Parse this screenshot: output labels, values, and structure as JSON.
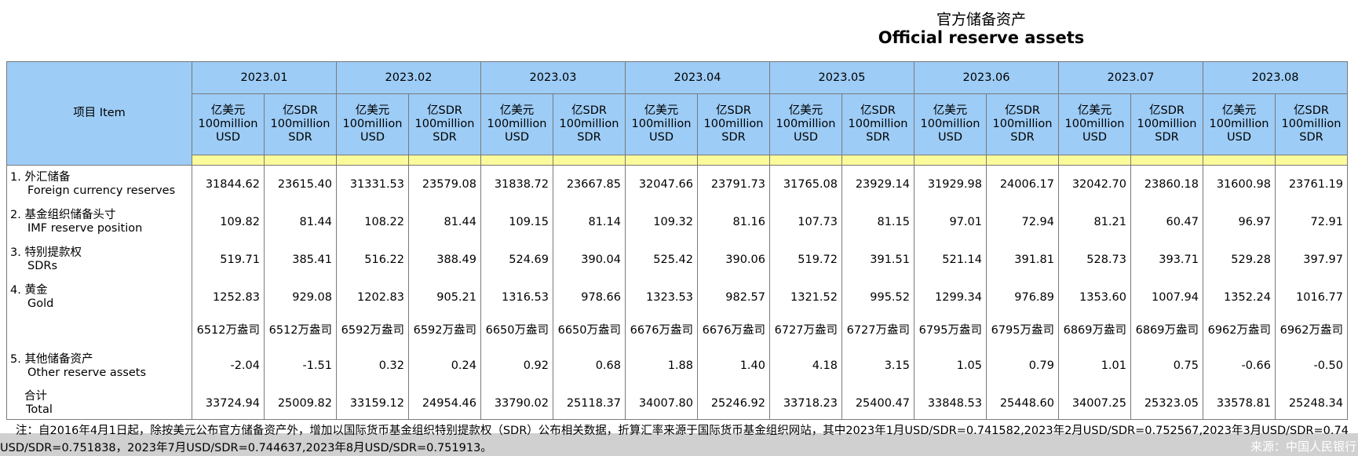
{
  "title": {
    "zh": "官方储备资产",
    "en": "Official reserve assets"
  },
  "item_header": "项目  Item",
  "months": [
    "2023.01",
    "2023.02",
    "2023.03",
    "2023.04",
    "2023.05",
    "2023.06",
    "2023.07",
    "2023.08"
  ],
  "units": {
    "usd": [
      "亿美元",
      "100million",
      "USD"
    ],
    "sdr": [
      "亿SDR",
      "100million",
      "SDR"
    ]
  },
  "rows": [
    {
      "zh": "1.  外汇储备",
      "en": "Foreign currency reserves",
      "values": [
        "31844.62",
        "23615.40",
        "31331.53",
        "23579.08",
        "31838.72",
        "23667.85",
        "32047.66",
        "23791.73",
        "31765.08",
        "23929.14",
        "31929.98",
        "24006.17",
        "32042.70",
        "23860.18",
        "31600.98",
        "23761.19"
      ]
    },
    {
      "zh": "2.  基金组织储备头寸",
      "en": "IMF reserve position",
      "values": [
        "109.82",
        "81.44",
        "108.22",
        "81.44",
        "109.15",
        "81.14",
        "109.32",
        "81.16",
        "107.73",
        "81.15",
        "97.01",
        "72.94",
        "81.21",
        "60.47",
        "96.97",
        "72.91"
      ]
    },
    {
      "zh": "3.  特别提款权",
      "en": "SDRs",
      "values": [
        "519.71",
        "385.41",
        "516.22",
        "388.49",
        "524.69",
        "390.04",
        "525.42",
        "390.06",
        "519.72",
        "391.51",
        "521.14",
        "391.81",
        "528.73",
        "393.71",
        "529.28",
        "397.97"
      ]
    },
    {
      "zh": "4.  黄金",
      "en": "Gold",
      "values": [
        "1252.83",
        "929.08",
        "1202.83",
        "905.21",
        "1316.53",
        "978.66",
        "1323.53",
        "982.57",
        "1321.52",
        "995.52",
        "1299.34",
        "976.89",
        "1353.60",
        "1007.94",
        "1352.24",
        "1016.77"
      ]
    },
    {
      "zh": "",
      "en": "",
      "values": [
        "6512万盎司",
        "6512万盎司",
        "6592万盎司",
        "6592万盎司",
        "6650万盎司",
        "6650万盎司",
        "6676万盎司",
        "6676万盎司",
        "6727万盎司",
        "6727万盎司",
        "6795万盎司",
        "6795万盎司",
        "6869万盎司",
        "6869万盎司",
        "6962万盎司",
        "6962万盎司"
      ]
    },
    {
      "zh": "5.  其他储备资产",
      "en": "Other reserve assets",
      "values": [
        "-2.04",
        "-1.51",
        "0.32",
        "0.24",
        "0.92",
        "0.68",
        "1.88",
        "1.40",
        "4.18",
        "3.15",
        "1.05",
        "0.79",
        "1.01",
        "0.75",
        "-0.66",
        "-0.50"
      ]
    },
    {
      "zh": "合计",
      "en": "Total",
      "values": [
        "33724.94",
        "25009.82",
        "33159.12",
        "24954.46",
        "33790.02",
        "25118.37",
        "34007.80",
        "25246.92",
        "33718.23",
        "25400.47",
        "33848.53",
        "25448.60",
        "34007.25",
        "25323.05",
        "33578.81",
        "25248.34"
      ]
    }
  ],
  "note": {
    "line1": "注：自2016年4月1日起，除按美元公布官方储备资产外，增加以国际货币基金组织特别提款权（SDR）公布相关数据，折算汇率来源于国际货币基金组织网站，其中2023年1月USD/SDR=0.741582,2023年2月USD/SDR=0.752567,2023年3月USD/SDR=0.74",
    "line2": "USD/SDR=0.751838，2023年7月USD/SDR=0.744637,2023年8月USD/SDR=0.751913。"
  },
  "source": "来源：中国人民银行"
}
